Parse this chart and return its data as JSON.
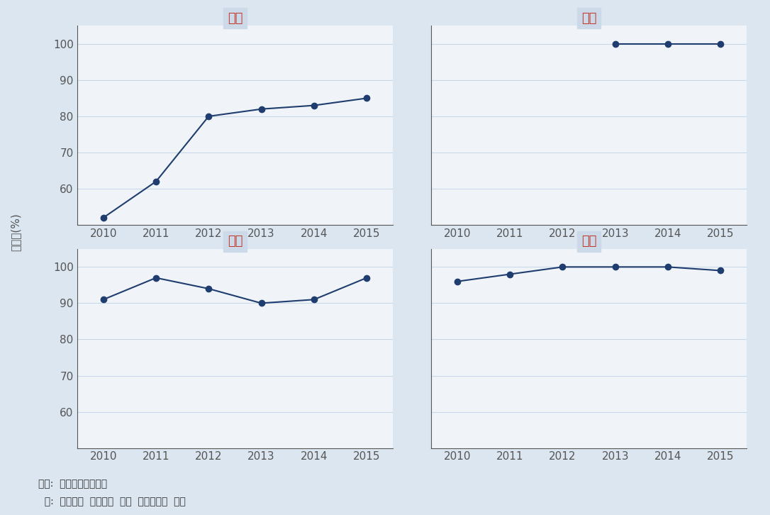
{
  "subplots": [
    {
      "title": "군산",
      "years": [
        2010,
        2011,
        2012,
        2013,
        2014,
        2015
      ],
      "values": [
        52,
        62,
        80,
        82,
        83,
        85
      ],
      "ylim": [
        50,
        105
      ],
      "yticks": [
        60,
        70,
        80,
        90,
        100
      ]
    },
    {
      "title": "김제",
      "years": [
        2013,
        2014,
        2015
      ],
      "values": [
        100,
        100,
        100
      ],
      "ylim": [
        50,
        105
      ],
      "yticks": [
        60,
        70,
        80,
        90,
        100
      ]
    },
    {
      "title": "대불",
      "years": [
        2010,
        2011,
        2012,
        2013,
        2014,
        2015
      ],
      "values": [
        91,
        97,
        94,
        90,
        91,
        97
      ],
      "ylim": [
        50,
        105
      ],
      "yticks": [
        60,
        70,
        80,
        90,
        100
      ]
    },
    {
      "title": "마산",
      "years": [
        2010,
        2011,
        2012,
        2013,
        2014,
        2015
      ],
      "values": [
        96,
        98,
        100,
        100,
        100,
        99
      ],
      "ylim": [
        50,
        105
      ],
      "yticks": [
        60,
        70,
        80,
        90,
        100
      ]
    }
  ],
  "xlim": [
    2009.5,
    2015.5
  ],
  "xticks": [
    2010,
    2011,
    2012,
    2013,
    2014,
    2015
  ],
  "line_color": "#1f3d6e",
  "marker": "o",
  "marker_size": 6,
  "marker_color": "#1f3d6e",
  "subplot_bg_color": "#f0f4f8",
  "outer_bg_color": "#dce6f0",
  "ylabel": "가동률(%)",
  "footnote_line1": "자료:  한국산업단지공단",
  "footnote_line2": "  주:  가동률은  입주업체  대비  가동업체의  비율",
  "title_color": "#c0392b",
  "axis_color": "#555555",
  "grid_color": "#c8d8e8",
  "tick_label_fontsize": 11,
  "title_fontsize": 13,
  "ylabel_fontsize": 11
}
